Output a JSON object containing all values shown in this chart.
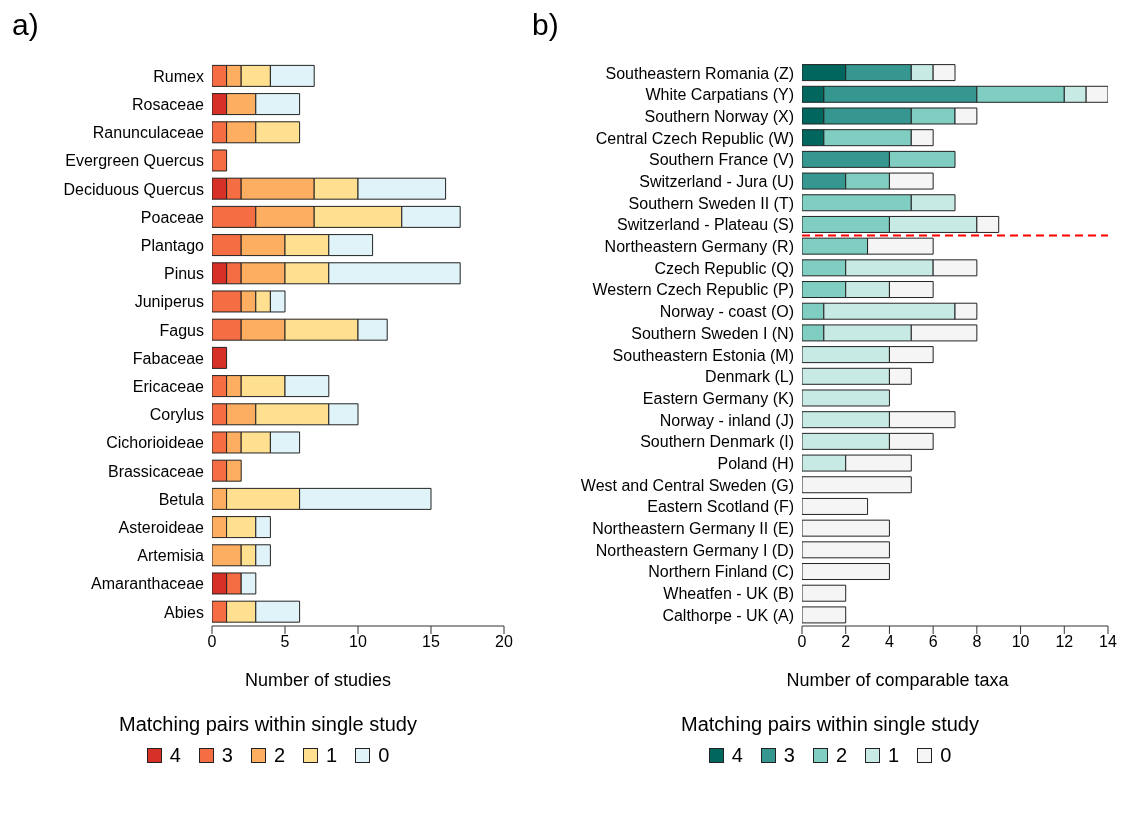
{
  "chart_data": [
    {
      "type": "bar",
      "title": "a)",
      "orientation": "horizontal",
      "stacked": true,
      "xlabel": "Number of studies",
      "legend_title": "Matching pairs within single study",
      "legend": "bottom",
      "grid": false,
      "categories": [
        "Rumex",
        "Rosaceae",
        "Ranunculaceae",
        "Evergreen Quercus",
        "Deciduous Quercus",
        "Poaceae",
        "Plantago",
        "Pinus",
        "Juniperus",
        "Fagus",
        "Fabaceae",
        "Ericaceae",
        "Corylus",
        "Cichorioideae",
        "Brassicaceae",
        "Betula",
        "Asteroideae",
        "Artemisia",
        "Amaranthaceae",
        "Abies"
      ],
      "xlim": [
        0,
        20
      ],
      "xticks": [
        0,
        5,
        10,
        15,
        20
      ],
      "series": [
        {
          "name": "4",
          "color": "#d73027",
          "values": [
            0,
            1,
            0,
            0,
            1,
            0,
            0,
            1,
            0,
            0,
            1,
            0,
            0,
            0,
            0,
            0,
            0,
            0,
            1,
            0
          ]
        },
        {
          "name": "3",
          "color": "#f46d43",
          "values": [
            1,
            0,
            1,
            1,
            1,
            3,
            2,
            1,
            2,
            2,
            0,
            1,
            1,
            1,
            1,
            0,
            0,
            0,
            1,
            1
          ]
        },
        {
          "name": "2",
          "color": "#fdae61",
          "values": [
            1,
            2,
            2,
            0,
            5,
            4,
            3,
            3,
            1,
            3,
            0,
            1,
            2,
            1,
            1,
            1,
            1,
            2,
            0,
            0
          ]
        },
        {
          "name": "1",
          "color": "#fee090",
          "values": [
            2,
            0,
            3,
            0,
            3,
            6,
            3,
            3,
            1,
            5,
            0,
            3,
            5,
            2,
            0,
            5,
            2,
            1,
            0,
            2
          ]
        },
        {
          "name": "0",
          "color": "#e0f3f8",
          "values": [
            3,
            3,
            0,
            0,
            6,
            4,
            3,
            9,
            1,
            2,
            0,
            3,
            2,
            2,
            0,
            9,
            1,
            1,
            1,
            3
          ]
        }
      ]
    },
    {
      "type": "bar",
      "title": "b)",
      "orientation": "horizontal",
      "stacked": true,
      "xlabel": "Number of comparable taxa",
      "legend_title": "Matching pairs within single study",
      "legend": "bottom",
      "grid": false,
      "categories": [
        "Southeastern Romania (Z)",
        "White Carpatians (Y)",
        "Southern Norway (X)",
        "Central Czech Republic (W)",
        "Southern France (V)",
        "Switzerland - Jura (U)",
        "Southern Sweden II (T)",
        "Switzerland - Plateau (S)",
        "Northeastern Germany (R)",
        "Czech Republic (Q)",
        "Western Czech Republic (P)",
        "Norway - coast (O)",
        "Southern Sweden I (N)",
        "Southeastern Estonia (M)",
        "Denmark (L)",
        "Eastern Germany (K)",
        "Norway - inland (J)",
        "Southern Denmark (I)",
        "Poland (H)",
        "West and Central  Sweden (G)",
        "Eastern Scotland (F)",
        "Northeastern Germany II (E)",
        "Northeastern Germany I (D)",
        "Northern Finland (C)",
        "Wheatfen - UK (B)",
        "Calthorpe - UK (A)"
      ],
      "xlim": [
        0,
        14
      ],
      "xticks": [
        0,
        2,
        4,
        6,
        8,
        10,
        12,
        14
      ],
      "ref_lines": [
        {
          "axis": "y",
          "value": "Switzerland - Plateau (S)",
          "color": "#ff0000",
          "line_style": "dashed"
        }
      ],
      "series": [
        {
          "name": "4",
          "color": "#01665e",
          "values": [
            2,
            1,
            1,
            1,
            0,
            0,
            0,
            0,
            0,
            0,
            0,
            0,
            0,
            0,
            0,
            0,
            0,
            0,
            0,
            0,
            0,
            0,
            0,
            0,
            0,
            0
          ]
        },
        {
          "name": "3",
          "color": "#35978f",
          "values": [
            3,
            7,
            4,
            0,
            4,
            2,
            0,
            0,
            0,
            0,
            0,
            0,
            0,
            0,
            0,
            0,
            0,
            0,
            0,
            0,
            0,
            0,
            0,
            0,
            0,
            0
          ]
        },
        {
          "name": "2",
          "color": "#80cdc1",
          "values": [
            0,
            4,
            2,
            4,
            3,
            2,
            5,
            4,
            3,
            2,
            2,
            1,
            1,
            0,
            0,
            0,
            0,
            0,
            0,
            0,
            0,
            0,
            0,
            0,
            0,
            0
          ]
        },
        {
          "name": "1",
          "color": "#c7eae5",
          "values": [
            1,
            1,
            0,
            0,
            0,
            0,
            2,
            4,
            0,
            4,
            2,
            6,
            4,
            4,
            4,
            4,
            4,
            4,
            2,
            0,
            0,
            0,
            0,
            0,
            0,
            0
          ]
        },
        {
          "name": "0",
          "color": "#f5f5f5",
          "values": [
            1,
            1,
            1,
            1,
            0,
            2,
            0,
            1,
            3,
            2,
            2,
            1,
            3,
            2,
            1,
            0,
            3,
            2,
            3,
            5,
            3,
            4,
            4,
            4,
            2,
            2
          ]
        }
      ]
    }
  ]
}
